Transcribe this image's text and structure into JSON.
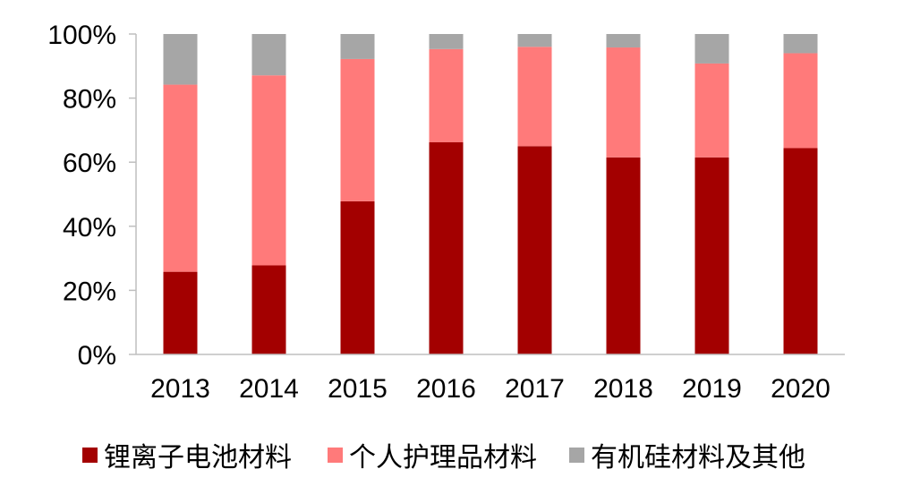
{
  "chart_data": {
    "type": "bar",
    "stacked": true,
    "categories": [
      "2013",
      "2014",
      "2015",
      "2016",
      "2017",
      "2018",
      "2019",
      "2020"
    ],
    "series": [
      {
        "name": "锂离子电池材料",
        "color": "#a30000",
        "values": [
          25.8,
          27.8,
          47.8,
          66.2,
          65.0,
          61.5,
          61.5,
          64.4
        ]
      },
      {
        "name": "个人护理品材料",
        "color": "#ff7a7a",
        "values": [
          58.4,
          59.3,
          44.4,
          29.1,
          31.0,
          34.3,
          29.3,
          29.6
        ]
      },
      {
        "name": "有机硅材料及其他",
        "color": "#a6a6a6",
        "values": [
          15.8,
          12.9,
          7.8,
          4.7,
          4.0,
          4.2,
          9.2,
          6.0
        ]
      }
    ],
    "ylim": [
      0,
      100
    ],
    "yticks": [
      "0%",
      "20%",
      "40%",
      "60%",
      "80%",
      "100%"
    ],
    "ytick_values": [
      0,
      20,
      40,
      60,
      80,
      100
    ],
    "grid": false,
    "legend": "bottom"
  }
}
